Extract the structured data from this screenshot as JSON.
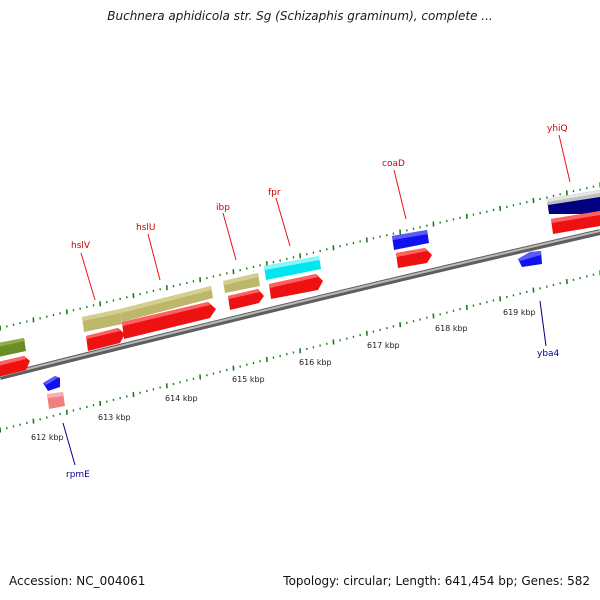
{
  "title": "Buchnera aphidicola str. Sg (Schizaphis graminum), complete ...",
  "footer": {
    "accession": "Accession: NC_004061",
    "summary": "Topology: circular; Length: 641,454 bp; Genes: 582"
  },
  "colors": {
    "backbone": "#8c8c8c",
    "tick": "#1f7a1f",
    "label_upper": "#cc0000",
    "label_lower": "#00008b",
    "red_feature": "#ee1111",
    "khaki_feature": "#bdb76b",
    "cyan_feature": "#00e5ee",
    "blue_feature": "#1111ee",
    "olive_feature": "#6b8e23",
    "pink_feature": "#f08080",
    "navy_feature": "#000080",
    "gray_feature": "#c0c0c0"
  },
  "scale": {
    "unit": "kbp",
    "ticks": [
      "612 kbp",
      "613 kbp",
      "614 kbp",
      "615 kbp",
      "616 kbp",
      "617 kbp",
      "618 kbp",
      "619 kbp"
    ]
  },
  "gene_labels": [
    {
      "name": "hslV",
      "strand": "upper"
    },
    {
      "name": "hslU",
      "strand": "upper"
    },
    {
      "name": "ibp",
      "strand": "upper"
    },
    {
      "name": "fpr",
      "strand": "upper"
    },
    {
      "name": "coaD",
      "strand": "upper"
    },
    {
      "name": "yhiQ",
      "strand": "upper"
    },
    {
      "name": "yba4",
      "strand": "lower"
    },
    {
      "name": "rpmE",
      "strand": "lower"
    }
  ]
}
